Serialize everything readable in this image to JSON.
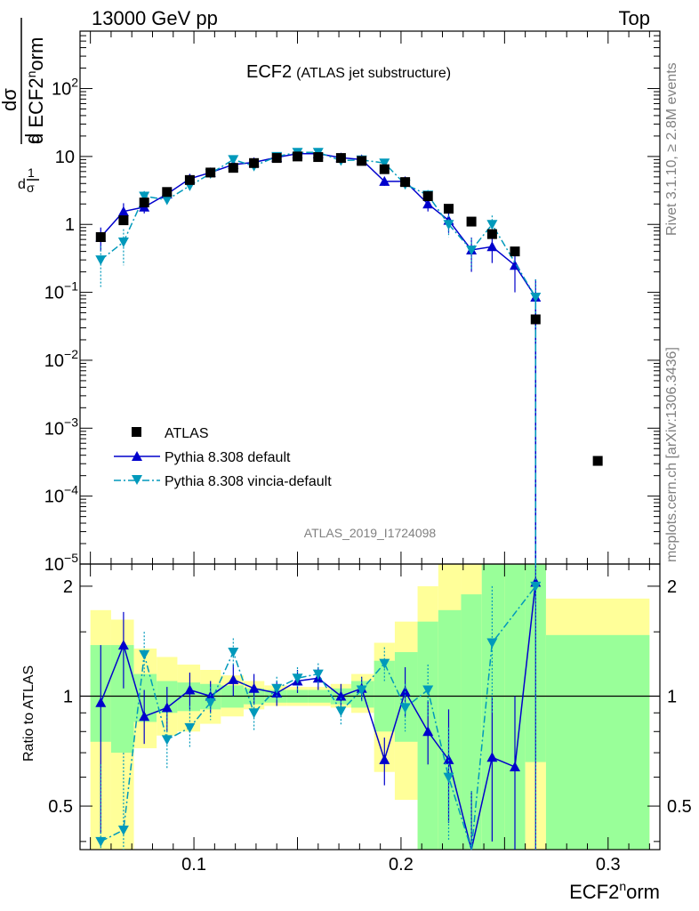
{
  "header": {
    "left": "13000 GeV pp",
    "right": "Top"
  },
  "title": {
    "main": "ECF2",
    "sub": "(ATLAS jet substructure)"
  },
  "analysis_id": "ATLAS_2019_I1724098",
  "side_text": {
    "rivet": "Rivet 3.1.10, ≥ 2.8M events",
    "source": "mcplots.cern.ch [arXiv:1306.3436]"
  },
  "axes": {
    "ylabel_top": "1/σ dσ/d ECF2norm",
    "ylabel_top_parts": {
      "one": "1",
      "sigma": "σ",
      "dsigma": "dσ",
      "d": "d",
      "den": "d ECF2",
      "sup": "n",
      "tail": "orm",
      "dpref": "d"
    },
    "ylabel_bottom": "Ratio to ATLAS",
    "xlabel_main": "ECF2",
    "xlabel_sup": "n",
    "xlabel_tail": "orm",
    "xticks": [
      "0.1",
      "0.2",
      "0.3"
    ],
    "yticks_top": [
      {
        "base": "10",
        "exp": "2"
      },
      {
        "base": "10",
        "exp": ""
      },
      {
        "base": "1",
        "exp": ""
      },
      {
        "base": "10",
        "exp": "−1"
      },
      {
        "base": "10",
        "exp": "−2"
      },
      {
        "base": "10",
        "exp": "−3"
      },
      {
        "base": "10",
        "exp": "−4"
      },
      {
        "base": "10",
        "exp": "−5"
      }
    ],
    "yticks_bottom": [
      "2",
      "1",
      "0.5"
    ]
  },
  "legend": [
    {
      "label": "ATLAS",
      "marker": "square",
      "color": "#000000"
    },
    {
      "label": "Pythia 8.308 default",
      "marker": "triangle-up",
      "color": "#0000cc"
    },
    {
      "label": "Pythia 8.308 vincia-default",
      "marker": "triangle-down",
      "color": "#0099bb"
    }
  ],
  "chart_data": {
    "type": "line",
    "x_range": [
      0.045,
      0.325
    ],
    "y_range_top": [
      1e-05,
      700
    ],
    "y_scale_top": "log",
    "y_range_bottom": [
      0.38,
      2.3
    ],
    "y_scale_bottom": "log",
    "bins": [
      {
        "x": 0.055,
        "atlas": 0.65,
        "def": 0.65,
        "def_err": 0.25,
        "vin": 0.3,
        "vin_err": 0.18
      },
      {
        "x": 0.066,
        "atlas": 1.15,
        "def": 1.55,
        "def_err": 0.5,
        "vin": 0.55,
        "vin_err": 0.3
      },
      {
        "x": 0.076,
        "atlas": 2.1,
        "def": 1.8,
        "def_err": 0.35,
        "vin": 2.6,
        "vin_err": 0.5
      },
      {
        "x": 0.087,
        "atlas": 3.0,
        "def": 2.8,
        "def_err": 0.4,
        "vin": 2.3,
        "vin_err": 0.4
      },
      {
        "x": 0.098,
        "atlas": 4.5,
        "def": 4.7,
        "def_err": 0.6,
        "vin": 3.7,
        "vin_err": 0.5
      },
      {
        "x": 0.108,
        "atlas": 5.8,
        "def": 5.8,
        "def_err": 0.6,
        "vin": 5.6,
        "vin_err": 0.6
      },
      {
        "x": 0.119,
        "atlas": 6.8,
        "def": 7.6,
        "def_err": 0.7,
        "vin": 9.0,
        "vin_err": 0.8
      },
      {
        "x": 0.129,
        "atlas": 8.0,
        "def": 8.2,
        "def_err": 0.7,
        "vin": 7.2,
        "vin_err": 0.7
      },
      {
        "x": 0.14,
        "atlas": 9.5,
        "def": 9.7,
        "def_err": 0.8,
        "vin": 10.0,
        "vin_err": 0.8
      },
      {
        "x": 0.15,
        "atlas": 10.0,
        "def": 11.0,
        "def_err": 0.8,
        "vin": 11.5,
        "vin_err": 0.8
      },
      {
        "x": 0.16,
        "atlas": 9.8,
        "def": 11.0,
        "def_err": 0.8,
        "vin": 11.5,
        "vin_err": 0.8
      },
      {
        "x": 0.171,
        "atlas": 9.5,
        "def": 9.6,
        "def_err": 0.8,
        "vin": 8.7,
        "vin_err": 0.8
      },
      {
        "x": 0.181,
        "atlas": 8.6,
        "def": 9.0,
        "def_err": 0.8,
        "vin": 8.9,
        "vin_err": 0.8
      },
      {
        "x": 0.192,
        "atlas": 6.5,
        "def": 4.3,
        "def_err": 0.6,
        "vin": 8.0,
        "vin_err": 0.8
      },
      {
        "x": 0.202,
        "atlas": 4.2,
        "def": 4.3,
        "def_err": 0.6,
        "vin": 3.9,
        "vin_err": 0.6
      },
      {
        "x": 0.213,
        "atlas": 2.6,
        "def": 2.0,
        "def_err": 0.45,
        "vin": 2.7,
        "vin_err": 0.5
      },
      {
        "x": 0.223,
        "atlas": 1.7,
        "def": 1.15,
        "def_err": 0.4,
        "vin": 1.0,
        "vin_err": 0.35
      },
      {
        "x": 0.234,
        "atlas": 1.1,
        "def": 0.42,
        "def_err": 0.22,
        "vin": 0.42,
        "vin_err": 0.2
      },
      {
        "x": 0.244,
        "atlas": 0.72,
        "def": 0.47,
        "def_err": 0.2,
        "vin": 1.0,
        "vin_err": 0.35
      },
      {
        "x": 0.255,
        "atlas": 0.4,
        "def": 0.25,
        "def_err": 0.15,
        "vin": null,
        "vin_err": null
      },
      {
        "x": 0.265,
        "atlas": 0.04,
        "def": 0.085,
        "def_err": 0.07,
        "vin": 0.085,
        "vin_err": 0.07
      },
      {
        "x": 0.295,
        "atlas": 0.00033,
        "def": null,
        "def_err": null,
        "vin": null,
        "vin_err": null
      }
    ],
    "ratio_default": [
      {
        "x": 0.055,
        "y": 0.96,
        "lo": 0.42,
        "hi": 1.38
      },
      {
        "x": 0.066,
        "y": 1.38,
        "lo": 1.05,
        "hi": 1.7
      },
      {
        "x": 0.076,
        "y": 0.88,
        "lo": 0.74,
        "hi": 1.04
      },
      {
        "x": 0.087,
        "y": 0.93,
        "lo": 0.8,
        "hi": 1.06
      },
      {
        "x": 0.098,
        "y": 1.04,
        "lo": 0.92,
        "hi": 1.16
      },
      {
        "x": 0.108,
        "y": 1.0,
        "lo": 0.9,
        "hi": 1.1
      },
      {
        "x": 0.119,
        "y": 1.11,
        "lo": 1.0,
        "hi": 1.22
      },
      {
        "x": 0.129,
        "y": 1.05,
        "lo": 0.95,
        "hi": 1.15
      },
      {
        "x": 0.14,
        "y": 1.02,
        "lo": 0.94,
        "hi": 1.1
      },
      {
        "x": 0.15,
        "y": 1.1,
        "lo": 1.02,
        "hi": 1.18
      },
      {
        "x": 0.16,
        "y": 1.12,
        "lo": 1.04,
        "hi": 1.2
      },
      {
        "x": 0.171,
        "y": 1.0,
        "lo": 0.92,
        "hi": 1.08
      },
      {
        "x": 0.181,
        "y": 1.05,
        "lo": 0.97,
        "hi": 1.13
      },
      {
        "x": 0.192,
        "y": 0.67,
        "lo": 0.57,
        "hi": 0.77
      },
      {
        "x": 0.202,
        "y": 1.03,
        "lo": 0.88,
        "hi": 1.2
      },
      {
        "x": 0.213,
        "y": 0.8,
        "lo": 0.65,
        "hi": 0.97
      },
      {
        "x": 0.223,
        "y": 0.67,
        "lo": 0.45,
        "hi": 0.92
      },
      {
        "x": 0.234,
        "y": 0.35,
        "lo": 0.2,
        "hi": 0.55
      },
      {
        "x": 0.244,
        "y": 0.68,
        "lo": 0.4,
        "hi": 1.0
      },
      {
        "x": 0.255,
        "y": 0.64,
        "lo": 0.3,
        "hi": 1.0
      },
      {
        "x": 0.265,
        "y": 2.05,
        "lo": 0.2,
        "hi": 3.5
      }
    ],
    "ratio_vincia": [
      {
        "x": 0.055,
        "y": 0.4,
        "lo": 0.15,
        "hi": 0.65
      },
      {
        "x": 0.066,
        "y": 0.43,
        "lo": 0.2,
        "hi": 0.7
      },
      {
        "x": 0.076,
        "y": 1.3,
        "lo": 1.12,
        "hi": 1.5
      },
      {
        "x": 0.087,
        "y": 0.76,
        "lo": 0.63,
        "hi": 0.9
      },
      {
        "x": 0.098,
        "y": 0.82,
        "lo": 0.72,
        "hi": 0.94
      },
      {
        "x": 0.108,
        "y": 0.96,
        "lo": 0.86,
        "hi": 1.06
      },
      {
        "x": 0.119,
        "y": 1.32,
        "lo": 1.2,
        "hi": 1.44
      },
      {
        "x": 0.129,
        "y": 0.9,
        "lo": 0.8,
        "hi": 1.0
      },
      {
        "x": 0.14,
        "y": 1.05,
        "lo": 0.97,
        "hi": 1.13
      },
      {
        "x": 0.15,
        "y": 1.12,
        "lo": 1.04,
        "hi": 1.2
      },
      {
        "x": 0.16,
        "y": 1.15,
        "lo": 1.07,
        "hi": 1.23
      },
      {
        "x": 0.171,
        "y": 0.91,
        "lo": 0.83,
        "hi": 0.99
      },
      {
        "x": 0.181,
        "y": 1.04,
        "lo": 0.96,
        "hi": 1.12
      },
      {
        "x": 0.192,
        "y": 1.23,
        "lo": 1.1,
        "hi": 1.36
      },
      {
        "x": 0.202,
        "y": 0.93,
        "lo": 0.8,
        "hi": 1.08
      },
      {
        "x": 0.213,
        "y": 1.04,
        "lo": 0.88,
        "hi": 1.22
      },
      {
        "x": 0.223,
        "y": 0.6,
        "lo": 0.4,
        "hi": 0.82
      },
      {
        "x": 0.234,
        "y": 0.36,
        "lo": 0.2,
        "hi": 0.55
      },
      {
        "x": 0.244,
        "y": 1.4,
        "lo": 0.9,
        "hi": 2.0
      },
      {
        "x": 0.265,
        "y": 2.0,
        "lo": 0.2,
        "hi": 3.5
      }
    ],
    "bands": [
      {
        "x0": 0.05,
        "x1": 0.06,
        "g_lo": 0.75,
        "g_hi": 1.38,
        "y_lo": 0.36,
        "y_hi": 1.72
      },
      {
        "x0": 0.06,
        "x1": 0.071,
        "g_lo": 0.7,
        "g_hi": 1.38,
        "y_lo": 0.38,
        "y_hi": 1.62
      },
      {
        "x0": 0.071,
        "x1": 0.082,
        "g_lo": 0.85,
        "g_hi": 1.15,
        "y_lo": 0.72,
        "y_hi": 1.35
      },
      {
        "x0": 0.082,
        "x1": 0.092,
        "g_lo": 0.9,
        "g_hi": 1.1,
        "y_lo": 0.78,
        "y_hi": 1.28
      },
      {
        "x0": 0.092,
        "x1": 0.103,
        "g_lo": 0.91,
        "g_hi": 1.09,
        "y_lo": 0.8,
        "y_hi": 1.22
      },
      {
        "x0": 0.103,
        "x1": 0.113,
        "g_lo": 0.92,
        "g_hi": 1.08,
        "y_lo": 0.84,
        "y_hi": 1.18
      },
      {
        "x0": 0.113,
        "x1": 0.124,
        "g_lo": 0.93,
        "g_hi": 1.07,
        "y_lo": 0.88,
        "y_hi": 1.14
      },
      {
        "x0": 0.124,
        "x1": 0.134,
        "g_lo": 0.95,
        "g_hi": 1.05,
        "y_lo": 0.92,
        "y_hi": 1.1
      },
      {
        "x0": 0.134,
        "x1": 0.145,
        "g_lo": 0.96,
        "g_hi": 1.04,
        "y_lo": 0.94,
        "y_hi": 1.07
      },
      {
        "x0": 0.145,
        "x1": 0.155,
        "g_lo": 0.96,
        "g_hi": 1.04,
        "y_lo": 0.94,
        "y_hi": 1.06
      },
      {
        "x0": 0.155,
        "x1": 0.166,
        "g_lo": 0.96,
        "g_hi": 1.04,
        "y_lo": 0.94,
        "y_hi": 1.06
      },
      {
        "x0": 0.166,
        "x1": 0.176,
        "g_lo": 0.95,
        "g_hi": 1.05,
        "y_lo": 0.93,
        "y_hi": 1.08
      },
      {
        "x0": 0.176,
        "x1": 0.187,
        "g_lo": 0.93,
        "g_hi": 1.1,
        "y_lo": 0.9,
        "y_hi": 1.15
      },
      {
        "x0": 0.187,
        "x1": 0.197,
        "g_lo": 0.8,
        "g_hi": 1.25,
        "y_lo": 0.62,
        "y_hi": 1.4
      },
      {
        "x0": 0.197,
        "x1": 0.208,
        "g_lo": 0.75,
        "g_hi": 1.32,
        "y_lo": 0.52,
        "y_hi": 1.6
      },
      {
        "x0": 0.208,
        "x1": 0.218,
        "g_lo": 0.3,
        "g_hi": 1.6,
        "y_lo": 0.3,
        "y_hi": 2.0
      },
      {
        "x0": 0.218,
        "x1": 0.229,
        "g_lo": 0.3,
        "g_hi": 1.72,
        "y_lo": 0.3,
        "y_hi": 2.4
      },
      {
        "x0": 0.229,
        "x1": 0.239,
        "g_lo": 0.3,
        "g_hi": 1.9,
        "y_lo": 0.3,
        "y_hi": 2.4
      },
      {
        "x0": 0.239,
        "x1": 0.25,
        "g_lo": 0.3,
        "g_hi": 2.4,
        "y_lo": 0.3,
        "y_hi": 2.4
      },
      {
        "x0": 0.25,
        "x1": 0.26,
        "g_lo": 0.3,
        "g_hi": 2.4,
        "y_lo": 0.3,
        "y_hi": 2.4
      },
      {
        "x0": 0.26,
        "x1": 0.27,
        "g_lo": 0.66,
        "g_hi": 2.4,
        "y_lo": 0.3,
        "y_hi": 2.4
      },
      {
        "x0": 0.27,
        "x1": 0.32,
        "g_lo": 0.3,
        "g_hi": 1.47,
        "y_lo": 0.3,
        "y_hi": 1.85
      }
    ]
  }
}
